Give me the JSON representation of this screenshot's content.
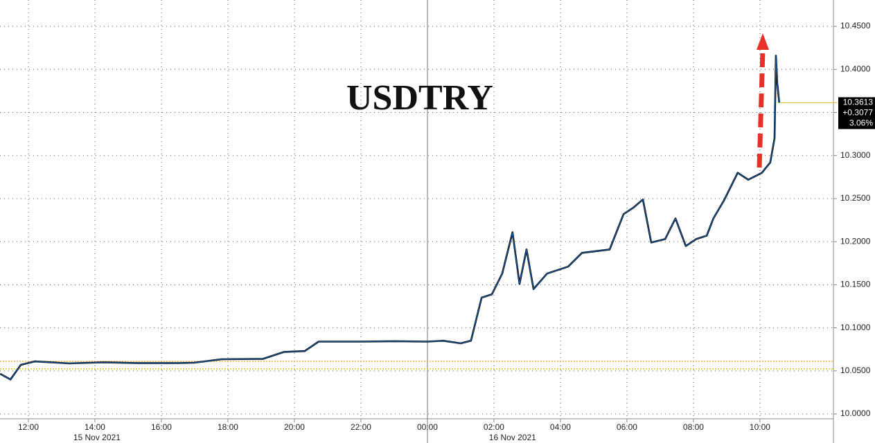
{
  "chart_data": {
    "type": "line",
    "title": "USDTRY",
    "x": [
      11.15,
      11.46,
      11.77,
      12.19,
      13.23,
      14.27,
      15.31,
      16.35,
      16.98,
      17.81,
      19.06,
      19.69,
      20.31,
      20.73,
      21.98,
      23.02,
      24.0,
      24.48,
      25.0,
      25.31,
      25.63,
      25.94,
      26.25,
      26.56,
      26.77,
      26.98,
      27.19,
      27.6,
      28.23,
      28.65,
      29.48,
      29.9,
      30.21,
      30.48,
      30.73,
      31.15,
      31.46,
      31.77,
      32.08,
      32.4,
      32.6,
      32.92,
      33.33,
      33.65,
      34.06,
      34.31,
      34.44,
      34.48,
      34.52,
      34.58
    ],
    "series": [
      {
        "name": "USDTRY",
        "color": "#1f5fa8",
        "values": [
          10.0466,
          10.04,
          10.057,
          10.061,
          10.0587,
          10.06,
          10.059,
          10.059,
          10.0595,
          10.0635,
          10.064,
          10.072,
          10.073,
          10.084,
          10.084,
          10.0845,
          10.084,
          10.085,
          10.082,
          10.085,
          10.135,
          10.139,
          10.163,
          10.211,
          10.151,
          10.191,
          10.145,
          10.163,
          10.171,
          10.187,
          10.191,
          10.232,
          10.24,
          10.249,
          10.199,
          10.203,
          10.227,
          10.195,
          10.203,
          10.207,
          10.227,
          10.248,
          10.28,
          10.272,
          10.28,
          10.292,
          10.32,
          10.416,
          10.384,
          10.3613
        ]
      }
    ],
    "xlim": [
      11.146,
      36.21
    ],
    "ylim": [
      9.9944,
      10.4806
    ],
    "xticks": [
      {
        "value": 12,
        "label": "12:00"
      },
      {
        "value": 14,
        "label": "14:00"
      },
      {
        "value": 16,
        "label": "16:00"
      },
      {
        "value": 18,
        "label": "18:00"
      },
      {
        "value": 20,
        "label": "20:00"
      },
      {
        "value": 22,
        "label": "22:00"
      },
      {
        "value": 24,
        "label": "00:00"
      },
      {
        "value": 26,
        "label": "02:00"
      },
      {
        "value": 28,
        "label": "04:00"
      },
      {
        "value": 30,
        "label": "06:00"
      },
      {
        "value": 32,
        "label": "08:00"
      },
      {
        "value": 34,
        "label": "10:00"
      }
    ],
    "yticks": [
      {
        "value": 10.0,
        "label": "10.0000"
      },
      {
        "value": 10.05,
        "label": "10.0500"
      },
      {
        "value": 10.1,
        "label": "10.1000"
      },
      {
        "value": 10.15,
        "label": "10.1500"
      },
      {
        "value": 10.2,
        "label": "10.2000"
      },
      {
        "value": 10.25,
        "label": "10.2500"
      },
      {
        "value": 10.3,
        "label": "10.3000"
      },
      {
        "value": 10.35,
        "label": "10.3500"
      },
      {
        "value": 10.4,
        "label": "10.4000"
      },
      {
        "value": 10.45,
        "label": "10.4500"
      }
    ],
    "day_labels": [
      {
        "value": 14.06,
        "label": "15 Nov 2021"
      },
      {
        "value": 26.56,
        "label": "16 Nov 2021"
      }
    ],
    "separator_x": 24,
    "reference_lines": [
      {
        "value": 10.0611,
        "color": "#f0a030"
      },
      {
        "value": 10.0523,
        "color": "#e0c800"
      }
    ],
    "last_price_color": "#e0c040",
    "price_tag": [
      "10.3613",
      "+0.3077",
      "3.06%"
    ],
    "grid": true
  }
}
